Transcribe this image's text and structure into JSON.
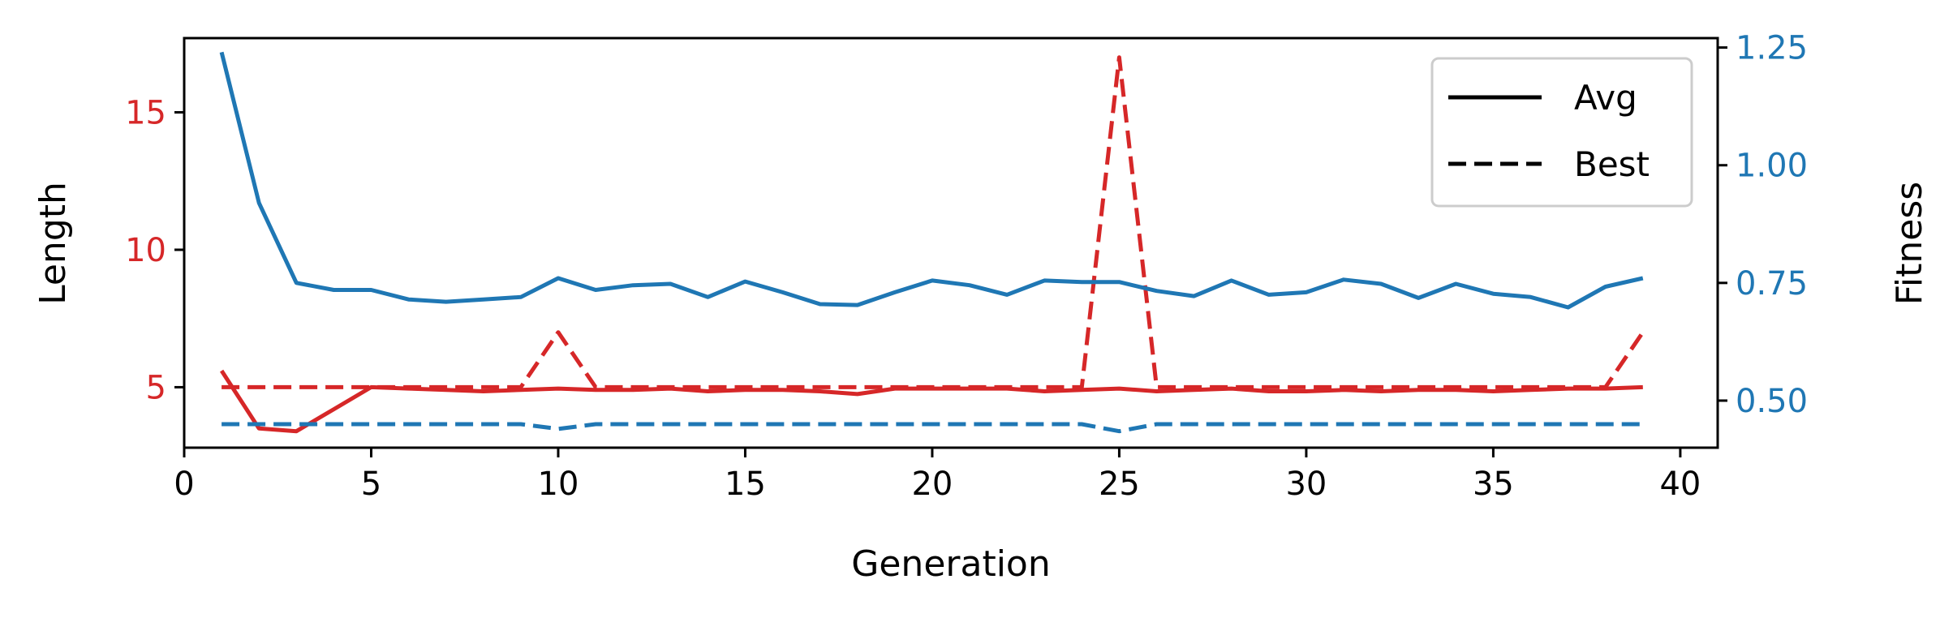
{
  "chart_data": {
    "type": "line",
    "x_axis": {
      "label": "Generation",
      "range": [
        0,
        41
      ],
      "ticks": [
        0,
        5,
        10,
        15,
        20,
        25,
        30,
        35,
        40
      ]
    },
    "y_left": {
      "label": "Length",
      "color": "#d62728",
      "range": [
        2.8,
        17.7
      ],
      "ticks": [
        5,
        10,
        15
      ]
    },
    "y_right": {
      "label": "Fitness",
      "color": "#1f77b4",
      "range": [
        0.4,
        1.27
      ],
      "ticks": [
        0.5,
        0.75,
        1.0,
        1.25
      ],
      "tick_labels": [
        "0.50",
        "0.75",
        "1.00",
        "1.25"
      ]
    },
    "x": [
      1,
      2,
      3,
      4,
      5,
      6,
      7,
      8,
      9,
      10,
      11,
      12,
      13,
      14,
      15,
      16,
      17,
      18,
      19,
      20,
      21,
      22,
      23,
      24,
      25,
      26,
      27,
      28,
      29,
      30,
      31,
      32,
      33,
      34,
      35,
      36,
      37,
      38,
      39
    ],
    "series": [
      {
        "name": "Avg",
        "axis": "left",
        "color": "#d62728",
        "style": "solid",
        "values": [
          5.6,
          3.5,
          3.4,
          4.2,
          5.0,
          4.95,
          4.9,
          4.85,
          4.9,
          4.95,
          4.9,
          4.9,
          4.95,
          4.85,
          4.9,
          4.9,
          4.85,
          4.75,
          4.95,
          4.95,
          4.95,
          4.95,
          4.85,
          4.9,
          4.95,
          4.85,
          4.9,
          4.95,
          4.85,
          4.85,
          4.9,
          4.85,
          4.9,
          4.9,
          4.85,
          4.9,
          4.95,
          4.95,
          5.0
        ]
      },
      {
        "name": "Best",
        "axis": "left",
        "color": "#d62728",
        "style": "dashed",
        "values": [
          5,
          5,
          5,
          5,
          5,
          5,
          5,
          5,
          5,
          7,
          5,
          5,
          5,
          5,
          5,
          5,
          5,
          5,
          5,
          5,
          5,
          5,
          5,
          5,
          17,
          5,
          5,
          5,
          5,
          5,
          5,
          5,
          5,
          5,
          5,
          5,
          5,
          5,
          7
        ]
      },
      {
        "name": "Avg",
        "axis": "right",
        "color": "#1f77b4",
        "style": "solid",
        "values": [
          1.24,
          0.92,
          0.75,
          0.735,
          0.735,
          0.715,
          0.71,
          0.715,
          0.72,
          0.76,
          0.735,
          0.745,
          0.748,
          0.72,
          0.753,
          0.73,
          0.705,
          0.703,
          0.73,
          0.755,
          0.745,
          0.725,
          0.755,
          0.752,
          0.752,
          0.733,
          0.722,
          0.755,
          0.725,
          0.73,
          0.757,
          0.748,
          0.718,
          0.748,
          0.727,
          0.72,
          0.698,
          0.742,
          0.76
        ]
      },
      {
        "name": "Best",
        "axis": "right",
        "color": "#1f77b4",
        "style": "dashed",
        "values": [
          0.45,
          0.45,
          0.45,
          0.45,
          0.45,
          0.45,
          0.45,
          0.45,
          0.45,
          0.44,
          0.45,
          0.45,
          0.45,
          0.45,
          0.45,
          0.45,
          0.45,
          0.45,
          0.45,
          0.45,
          0.45,
          0.45,
          0.45,
          0.45,
          0.435,
          0.45,
          0.45,
          0.45,
          0.45,
          0.45,
          0.45,
          0.45,
          0.45,
          0.45,
          0.45,
          0.45,
          0.45,
          0.45,
          0.45
        ]
      }
    ],
    "legend": {
      "placement": "top-right",
      "entries": [
        {
          "label": "Avg",
          "style": "solid",
          "color": "#000000"
        },
        {
          "label": "Best",
          "style": "dashed",
          "color": "#000000"
        }
      ]
    },
    "grid": false
  }
}
